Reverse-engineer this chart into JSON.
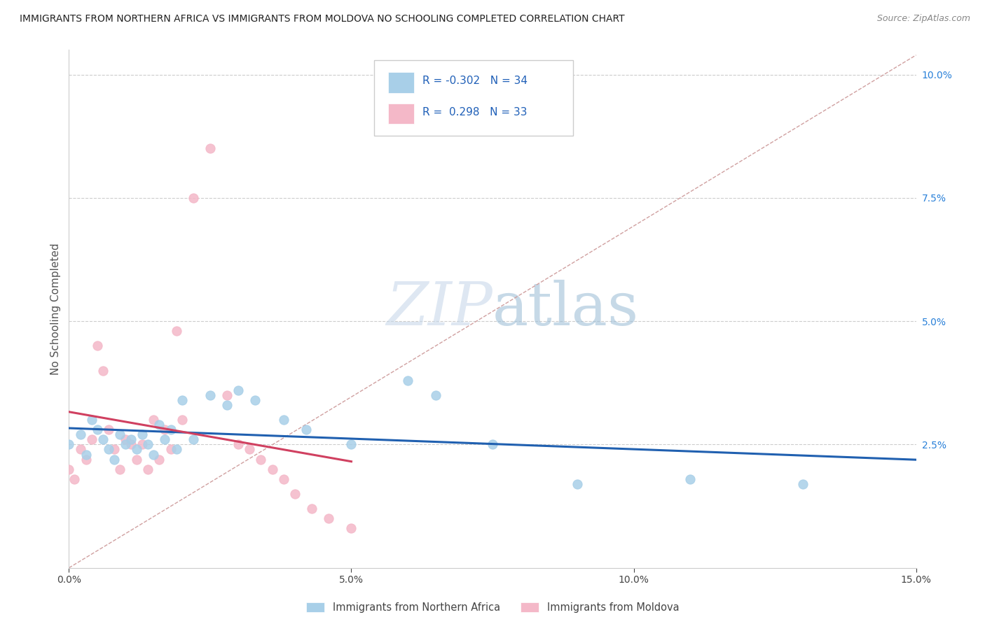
{
  "title": "IMMIGRANTS FROM NORTHERN AFRICA VS IMMIGRANTS FROM MOLDOVA NO SCHOOLING COMPLETED CORRELATION CHART",
  "source": "Source: ZipAtlas.com",
  "ylabel": "No Schooling Completed",
  "xlim": [
    0.0,
    0.15
  ],
  "ylim": [
    0.0,
    0.105
  ],
  "R_blue": -0.302,
  "N_blue": 34,
  "R_pink": 0.298,
  "N_pink": 33,
  "blue_color": "#a8cfe8",
  "pink_color": "#f4b8c8",
  "blue_line_color": "#2060b0",
  "pink_line_color": "#d04060",
  "diagonal_color": "#d0a0a0",
  "watermark_zip_color": "#c8d8e8",
  "watermark_atlas_color": "#a8c8e0",
  "blue_scatter_x": [
    0.0,
    0.002,
    0.003,
    0.004,
    0.005,
    0.006,
    0.007,
    0.008,
    0.009,
    0.01,
    0.011,
    0.012,
    0.013,
    0.014,
    0.015,
    0.016,
    0.017,
    0.018,
    0.019,
    0.02,
    0.022,
    0.025,
    0.028,
    0.03,
    0.033,
    0.038,
    0.042,
    0.05,
    0.06,
    0.065,
    0.075,
    0.09,
    0.11,
    0.13
  ],
  "blue_scatter_y": [
    0.025,
    0.027,
    0.023,
    0.03,
    0.028,
    0.026,
    0.024,
    0.022,
    0.027,
    0.025,
    0.026,
    0.024,
    0.027,
    0.025,
    0.023,
    0.029,
    0.026,
    0.028,
    0.024,
    0.034,
    0.026,
    0.035,
    0.033,
    0.036,
    0.034,
    0.03,
    0.028,
    0.025,
    0.038,
    0.035,
    0.025,
    0.017,
    0.018,
    0.017
  ],
  "pink_scatter_x": [
    0.0,
    0.001,
    0.002,
    0.003,
    0.004,
    0.005,
    0.006,
    0.007,
    0.008,
    0.009,
    0.01,
    0.011,
    0.012,
    0.013,
    0.014,
    0.015,
    0.016,
    0.017,
    0.018,
    0.019,
    0.02,
    0.022,
    0.025,
    0.028,
    0.03,
    0.032,
    0.034,
    0.036,
    0.038,
    0.04,
    0.043,
    0.046,
    0.05
  ],
  "pink_scatter_y": [
    0.02,
    0.018,
    0.024,
    0.022,
    0.026,
    0.045,
    0.04,
    0.028,
    0.024,
    0.02,
    0.026,
    0.025,
    0.022,
    0.025,
    0.02,
    0.03,
    0.022,
    0.028,
    0.024,
    0.048,
    0.03,
    0.075,
    0.085,
    0.035,
    0.025,
    0.024,
    0.022,
    0.02,
    0.018,
    0.015,
    0.012,
    0.01,
    0.008
  ]
}
